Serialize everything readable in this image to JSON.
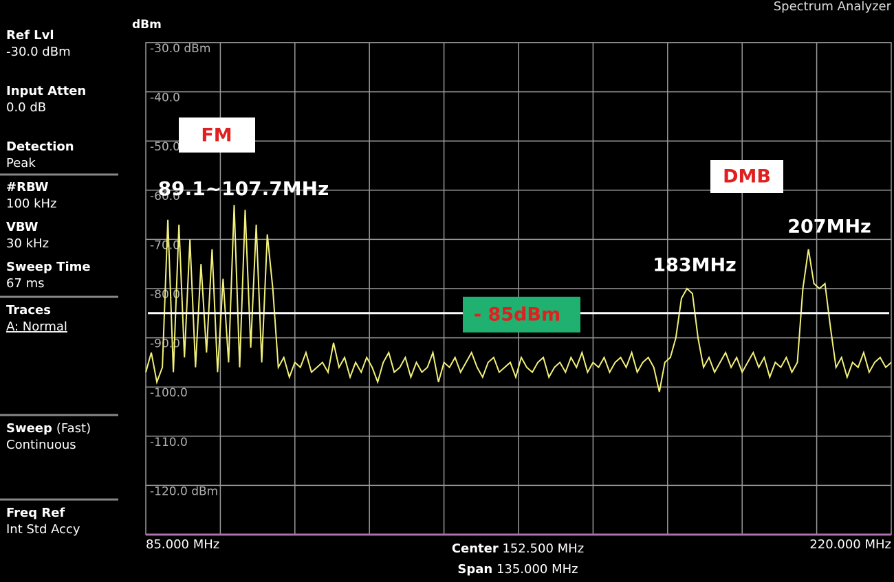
{
  "chart_data": {
    "type": "line",
    "title": "Spectrum Analyzer",
    "y_label": "dBm",
    "color": "#f2f07a",
    "grid": true,
    "xlim": [
      85,
      220
    ],
    "ylim": [
      -130,
      -30
    ],
    "yticks": [
      {
        "value": -30,
        "label": "-30.0 dBm"
      },
      {
        "value": -40,
        "label": "-40.0"
      },
      {
        "value": -50,
        "label": "-50.0"
      },
      {
        "value": -60,
        "label": "-60.0"
      },
      {
        "value": -70,
        "label": "-70.0"
      },
      {
        "value": -80,
        "label": "-80.0"
      },
      {
        "value": -90,
        "label": "-90.0"
      },
      {
        "value": -100,
        "label": "-100.0"
      },
      {
        "value": -110,
        "label": "-110.0"
      },
      {
        "value": -120,
        "label": "-120.0 dBm"
      }
    ],
    "xticks": [
      {
        "value": 85,
        "label": "85.000 MHz"
      },
      {
        "value": 220,
        "label": "220.000 MHz"
      }
    ],
    "center": {
      "label": "Center",
      "value": "152.500 MHz"
    },
    "span": {
      "label": "Span",
      "value": "135.000 MHz"
    },
    "reference_line": {
      "value": -85,
      "label": "- 85dBm"
    },
    "annotations": [
      "FM",
      "89.1~107.7MHz",
      "DMB",
      "183MHz",
      "207MHz"
    ],
    "x": [
      85,
      86,
      87,
      88,
      89,
      90,
      91,
      92,
      93,
      94,
      95,
      96,
      97,
      98,
      99,
      100,
      101,
      102,
      103,
      104,
      105,
      106,
      107,
      108,
      109,
      110,
      111,
      112,
      113,
      114,
      115,
      116,
      117,
      118,
      119,
      120,
      121,
      122,
      123,
      124,
      125,
      126,
      127,
      128,
      129,
      130,
      131,
      132,
      133,
      134,
      135,
      136,
      137,
      138,
      139,
      140,
      141,
      142,
      143,
      144,
      145,
      146,
      147,
      148,
      149,
      150,
      151,
      152,
      153,
      154,
      155,
      156,
      157,
      158,
      159,
      160,
      161,
      162,
      163,
      164,
      165,
      166,
      167,
      168,
      169,
      170,
      171,
      172,
      173,
      174,
      175,
      176,
      177,
      178,
      179,
      180,
      181,
      182,
      183,
      184,
      185,
      186,
      187,
      188,
      189,
      190,
      191,
      192,
      193,
      194,
      195,
      196,
      197,
      198,
      199,
      200,
      201,
      202,
      203,
      204,
      205,
      206,
      207,
      208,
      209,
      210,
      211,
      212,
      213,
      214,
      215,
      216,
      217,
      218,
      219,
      220
    ],
    "values": [
      -97,
      -93,
      -99,
      -96,
      -66,
      -97,
      -67,
      -94,
      -70,
      -96,
      -75,
      -93,
      -72,
      -97,
      -78,
      -95,
      -63,
      -96,
      -64,
      -92,
      -67,
      -95,
      -69,
      -80,
      -96,
      -94,
      -98,
      -95,
      -96,
      -93,
      -97,
      -96,
      -95,
      -97,
      -91,
      -96,
      -94,
      -98,
      -95,
      -97,
      -94,
      -96,
      -99,
      -95,
      -93,
      -97,
      -96,
      -94,
      -98,
      -95,
      -97,
      -96,
      -93,
      -99,
      -95,
      -96,
      -94,
      -97,
      -95,
      -93,
      -96,
      -98,
      -95,
      -94,
      -97,
      -96,
      -95,
      -98,
      -94,
      -96,
      -97,
      -95,
      -94,
      -98,
      -96,
      -95,
      -97,
      -94,
      -96,
      -93,
      -97,
      -95,
      -96,
      -94,
      -97,
      -95,
      -94,
      -96,
      -93,
      -97,
      -95,
      -94,
      -96,
      -101,
      -95,
      -94,
      -90,
      -82,
      -80,
      -81,
      -90,
      -96,
      -94,
      -97,
      -95,
      -93,
      -96,
      -94,
      -97,
      -95,
      -93,
      -96,
      -94,
      -98,
      -95,
      -96,
      -94,
      -97,
      -95,
      -80,
      -72,
      -79,
      -80,
      -79,
      -88,
      -96,
      -94,
      -98,
      -95,
      -96,
      -93,
      -97,
      -95,
      -94,
      -96,
      -95
    ]
  },
  "panel": [
    {
      "label": "Ref Lvl",
      "value": "-30.0 dBm"
    },
    {
      "label": "Input Atten",
      "value": "0.0 dB"
    },
    {
      "label": "Detection",
      "value": "Peak"
    },
    {
      "label": "#RBW",
      "value": "100 kHz"
    },
    {
      "label": "VBW",
      "value": "30 kHz"
    },
    {
      "label": "Sweep Time",
      "value": "67 ms"
    },
    {
      "label": "Traces",
      "value": "A: Normal"
    },
    {
      "label": "Sweep",
      "note": "(Fast)",
      "value": "Continuous"
    },
    {
      "label": "Freq Ref",
      "value": "Int Std Accy"
    }
  ]
}
